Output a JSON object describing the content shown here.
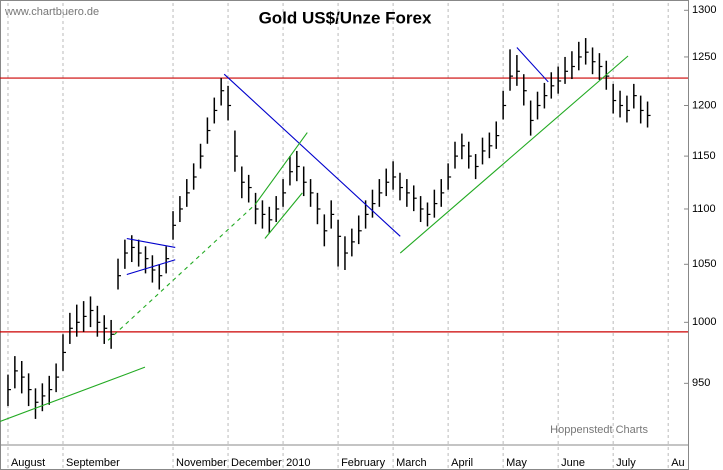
{
  "chart_data": {
    "type": "ohlc",
    "title": "Gold US$/Unze Forex",
    "watermark": "www.chartbuero.de",
    "source": "Hoppenstedt Charts",
    "log_scale": true,
    "color": "#000000",
    "grid_color": "#bbbbbb",
    "xlim": [
      -0.145,
      12.36
    ],
    "ylim": [
      902,
      1308
    ],
    "yticks": [
      950,
      1000,
      1050,
      1100,
      1150,
      1200,
      1250,
      1300
    ],
    "xticks": [
      {
        "value": 0,
        "label": "August"
      },
      {
        "value": 1,
        "label": "September"
      },
      {
        "value": 3,
        "label": "November"
      },
      {
        "value": 4,
        "label": "December"
      },
      {
        "value": 5,
        "label": "2010"
      },
      {
        "value": 6,
        "label": "February"
      },
      {
        "value": 7,
        "label": "March"
      },
      {
        "value": 8,
        "label": "April"
      },
      {
        "value": 9,
        "label": "May"
      },
      {
        "value": 10,
        "label": "June"
      },
      {
        "value": 11,
        "label": "July"
      },
      {
        "value": 12,
        "label": "Au"
      }
    ],
    "x": [
      0,
      0.125,
      0.25,
      0.375,
      0.5,
      0.625,
      0.75,
      0.875,
      1,
      1.125,
      1.25,
      1.375,
      1.5,
      1.625,
      1.75,
      1.875,
      2,
      2.125,
      2.25,
      2.375,
      2.5,
      2.625,
      2.75,
      2.875,
      3,
      3.125,
      3.25,
      3.375,
      3.5,
      3.625,
      3.75,
      3.875,
      4,
      4.125,
      4.25,
      4.375,
      4.5,
      4.625,
      4.75,
      4.875,
      5,
      5.125,
      5.25,
      5.375,
      5.5,
      5.625,
      5.75,
      5.875,
      6,
      6.125,
      6.25,
      6.375,
      6.5,
      6.625,
      6.75,
      6.875,
      7,
      7.125,
      7.25,
      7.375,
      7.5,
      7.625,
      7.75,
      7.875,
      8,
      8.125,
      8.25,
      8.375,
      8.5,
      8.625,
      8.75,
      8.875,
      9,
      9.125,
      9.25,
      9.375,
      9.5,
      9.625,
      9.75,
      9.875,
      10,
      10.125,
      10.25,
      10.375,
      10.5,
      10.625,
      10.75,
      10.875,
      11,
      11.125,
      11.25,
      11.375,
      11.5,
      11.625
    ],
    "high": [
      957,
      972,
      968,
      958,
      946,
      950,
      956,
      966,
      990,
      1008,
      1015,
      1018,
      1022,
      1014,
      1006,
      1002,
      1055,
      1072,
      1076,
      1072,
      1066,
      1058,
      1050,
      1066,
      1098,
      1112,
      1128,
      1143,
      1162,
      1188,
      1208,
      1228,
      1220,
      1175,
      1140,
      1132,
      1115,
      1108,
      1102,
      1112,
      1128,
      1150,
      1155,
      1140,
      1128,
      1115,
      1095,
      1108,
      1090,
      1075,
      1082,
      1094,
      1108,
      1118,
      1128,
      1138,
      1145,
      1134,
      1128,
      1122,
      1112,
      1106,
      1118,
      1128,
      1143,
      1164,
      1172,
      1164,
      1152,
      1168,
      1173,
      1184,
      1215,
      1258,
      1252,
      1232,
      1205,
      1214,
      1223,
      1234,
      1240,
      1250,
      1256,
      1266,
      1270,
      1260,
      1254,
      1246,
      1222,
      1215,
      1210,
      1222,
      1210,
      1204
    ],
    "low": [
      932,
      946,
      942,
      932,
      922,
      928,
      933,
      943,
      960,
      982,
      988,
      992,
      996,
      988,
      982,
      978,
      1028,
      1046,
      1052,
      1048,
      1042,
      1034,
      1028,
      1042,
      1072,
      1088,
      1102,
      1118,
      1138,
      1162,
      1182,
      1200,
      1185,
      1135,
      1110,
      1106,
      1086,
      1082,
      1078,
      1088,
      1102,
      1122,
      1126,
      1112,
      1102,
      1086,
      1066,
      1082,
      1048,
      1045,
      1057,
      1068,
      1082,
      1092,
      1102,
      1112,
      1118,
      1108,
      1102,
      1098,
      1088,
      1084,
      1092,
      1102,
      1118,
      1138,
      1147,
      1138,
      1128,
      1142,
      1148,
      1157,
      1186,
      1215,
      1220,
      1200,
      1170,
      1186,
      1197,
      1207,
      1212,
      1222,
      1227,
      1236,
      1242,
      1232,
      1226,
      1216,
      1192,
      1188,
      1183,
      1197,
      1182,
      1178
    ],
    "close": [
      945,
      960,
      955,
      945,
      935,
      940,
      945,
      955,
      975,
      995,
      1000,
      1005,
      1010,
      1000,
      995,
      990,
      1040,
      1060,
      1065,
      1060,
      1055,
      1045,
      1040,
      1055,
      1085,
      1100,
      1115,
      1130,
      1150,
      1175,
      1195,
      1215,
      1200,
      1150,
      1125,
      1120,
      1100,
      1095,
      1090,
      1100,
      1115,
      1135,
      1140,
      1125,
      1115,
      1100,
      1080,
      1095,
      1075,
      1060,
      1070,
      1080,
      1095,
      1105,
      1115,
      1125,
      1130,
      1120,
      1115,
      1110,
      1100,
      1095,
      1105,
      1115,
      1130,
      1150,
      1160,
      1150,
      1140,
      1155,
      1160,
      1170,
      1200,
      1230,
      1235,
      1215,
      1185,
      1200,
      1210,
      1220,
      1225,
      1235,
      1240,
      1250,
      1255,
      1245,
      1240,
      1230,
      1205,
      1200,
      1195,
      1210,
      1195,
      1190
    ],
    "hlines": [
      {
        "value": 1228,
        "color": "#cc0000"
      },
      {
        "value": 992,
        "color": "#cc0000"
      }
    ],
    "trendlines": [
      {
        "x": [
          3.93,
          7.13
        ],
        "y": [
          1232,
          1075
        ],
        "color": "#0000cc",
        "style": "solid"
      },
      {
        "x": [
          2.16,
          3.04
        ],
        "y": [
          1073,
          1065
        ],
        "color": "#0000cc",
        "style": "solid"
      },
      {
        "x": [
          2.16,
          3.04
        ],
        "y": [
          1041,
          1054
        ],
        "color": "#0000cc",
        "style": "solid"
      },
      {
        "x": [
          9.25,
          9.82
        ],
        "y": [
          1260,
          1224
        ],
        "color": "#0000cc",
        "style": "solid"
      },
      {
        "x": [
          -0.145,
          2.49
        ],
        "y": [
          920,
          963
        ],
        "color": "#22aa22",
        "style": "solid"
      },
      {
        "x": [
          1.82,
          4.49
        ],
        "y": [
          985,
          1104
        ],
        "color": "#22aa22",
        "style": "dashed"
      },
      {
        "x": [
          4.49,
          5.44
        ],
        "y": [
          1104,
          1173
        ],
        "color": "#22aa22",
        "style": "solid"
      },
      {
        "x": [
          4.67,
          5.35
        ],
        "y": [
          1073,
          1115
        ],
        "color": "#22aa22",
        "style": "solid"
      },
      {
        "x": [
          7.13,
          11.27
        ],
        "y": [
          1060,
          1251
        ],
        "color": "#22aa22",
        "style": "solid"
      }
    ]
  }
}
